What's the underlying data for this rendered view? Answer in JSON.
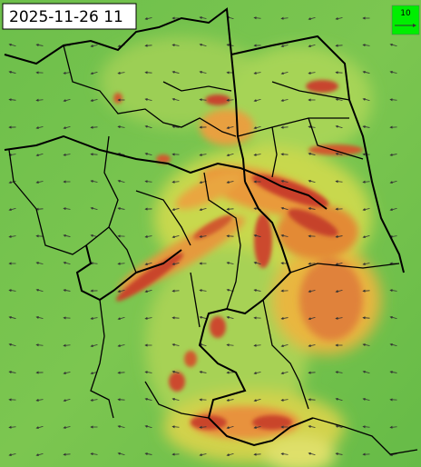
{
  "timestamp": "2025-11-26 11",
  "legend": {
    "label": "10"
  }
}
